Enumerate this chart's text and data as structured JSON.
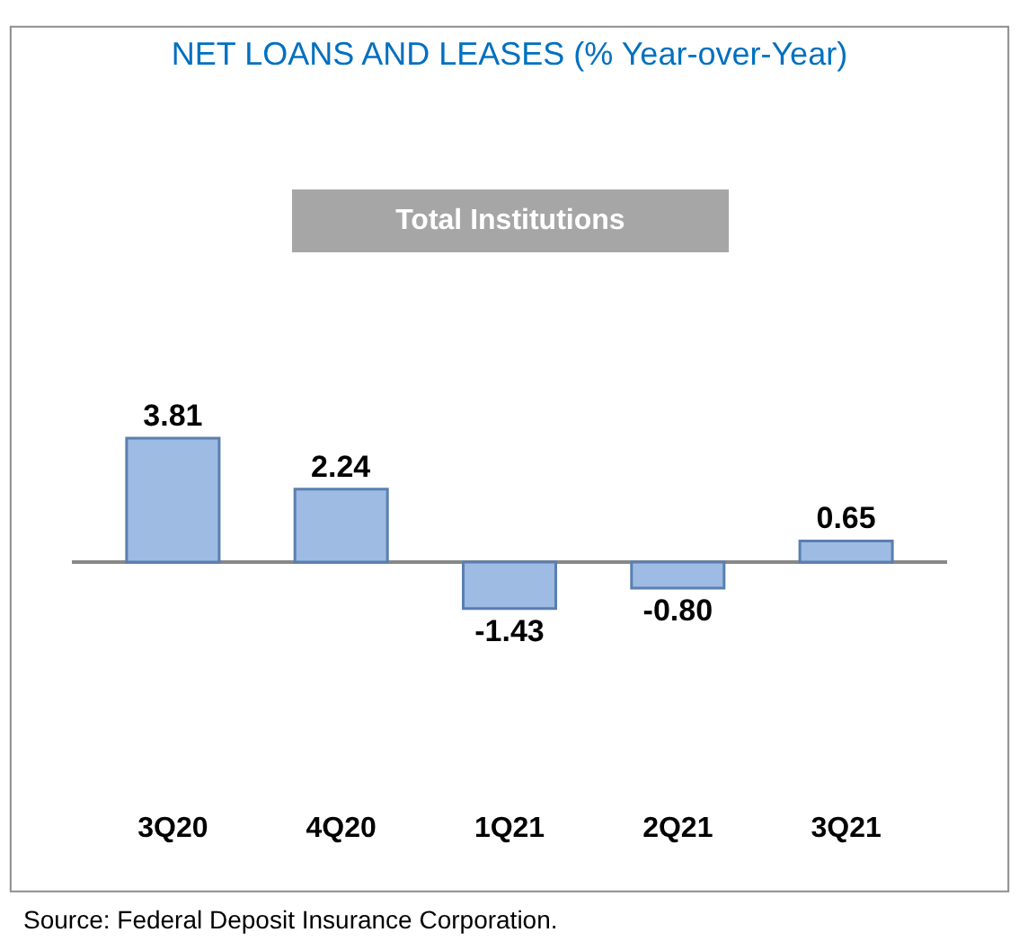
{
  "chart_data": {
    "type": "bar",
    "title": "NET LOANS AND LEASES (% Year-over-Year)",
    "subtitle": "Total Institutions",
    "categories": [
      "3Q20",
      "4Q20",
      "1Q21",
      "2Q21",
      "3Q21"
    ],
    "values": [
      3.81,
      2.24,
      -1.43,
      -0.8,
      0.65
    ],
    "color": "#9dbbe3",
    "value_labels": [
      "3.81",
      "2.24",
      "-1.43",
      "-0.80",
      "0.65"
    ],
    "annotations": [
      "Source: Federal Deposit Insurance Corporation."
    ]
  }
}
